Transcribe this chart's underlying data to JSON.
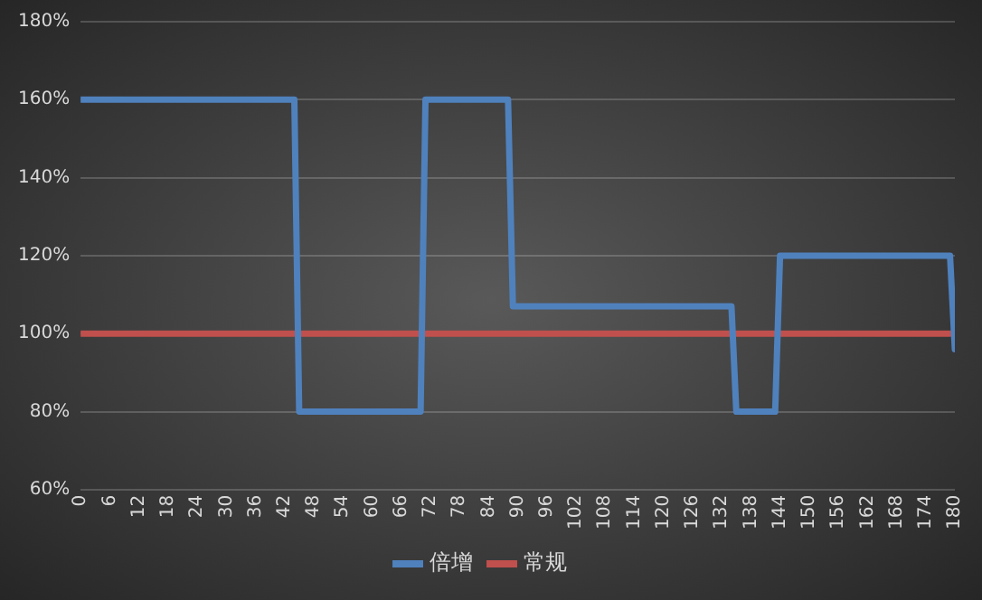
{
  "chart_data": {
    "type": "line",
    "series": [
      {
        "name": "倍增",
        "color": "#4f81bd",
        "x": [
          0,
          44,
          45,
          70,
          71,
          88,
          89,
          134,
          135,
          143,
          144,
          179,
          180
        ],
        "values": [
          160,
          160,
          80,
          80,
          160,
          160,
          107,
          107,
          80,
          80,
          120,
          120,
          96
        ]
      },
      {
        "name": "常规",
        "color": "#c0504d",
        "x": [
          0,
          180
        ],
        "values": [
          100,
          100
        ]
      }
    ],
    "xlim": [
      0,
      180
    ],
    "xticks": [
      0,
      6,
      12,
      18,
      24,
      30,
      36,
      42,
      48,
      54,
      60,
      66,
      72,
      78,
      84,
      90,
      96,
      102,
      108,
      114,
      120,
      126,
      132,
      138,
      144,
      150,
      156,
      162,
      168,
      174,
      180
    ],
    "ylim": [
      60,
      180
    ],
    "yticks": [
      {
        "value": 60,
        "label": "60%"
      },
      {
        "value": 80,
        "label": "80%"
      },
      {
        "value": 100,
        "label": "100%"
      },
      {
        "value": 120,
        "label": "120%"
      },
      {
        "value": 140,
        "label": "140%"
      },
      {
        "value": 160,
        "label": "160%"
      },
      {
        "value": 180,
        "label": "180%"
      }
    ],
    "grid": "y",
    "legend": "bottom",
    "marker": "none",
    "line_style": "solid"
  }
}
